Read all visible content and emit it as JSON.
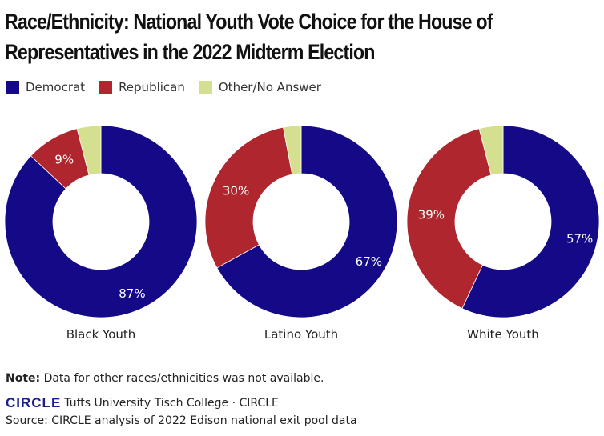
{
  "chart_data": {
    "type": "pie",
    "title": "Race/Ethnicity: National Youth Vote Choice for the House of Representatives in the 2022 Midterm Election",
    "legend": [
      "Democrat",
      "Republican",
      "Other/No Answer"
    ],
    "legend_placement": "top-left",
    "colors": {
      "Democrat": "#140a88",
      "Republican": "#b0262f",
      "Other/No Answer": "#d5df90"
    },
    "charts": [
      {
        "label": "Black Youth",
        "values": {
          "Democrat": 87,
          "Republican": 9,
          "Other/No Answer": 4
        },
        "labels": {
          "Democrat": "87%",
          "Republican": "9%"
        }
      },
      {
        "label": "Latino Youth",
        "values": {
          "Democrat": 67,
          "Republican": 30,
          "Other/No Answer": 3
        },
        "labels": {
          "Democrat": "67%",
          "Republican": "30%"
        }
      },
      {
        "label": "White Youth",
        "values": {
          "Democrat": 57,
          "Republican": 39,
          "Other/No Answer": 4
        },
        "labels": {
          "Democrat": "57%",
          "Republican": "39%"
        }
      }
    ]
  },
  "footer": {
    "note_label": "Note:",
    "note_text": " Data for other races/ethnicities was not available.",
    "logo": "CIRCLE",
    "org": "Tufts University Tisch College · CIRCLE",
    "source": "Source: CIRCLE analysis of 2022 Edison national exit pool data"
  }
}
